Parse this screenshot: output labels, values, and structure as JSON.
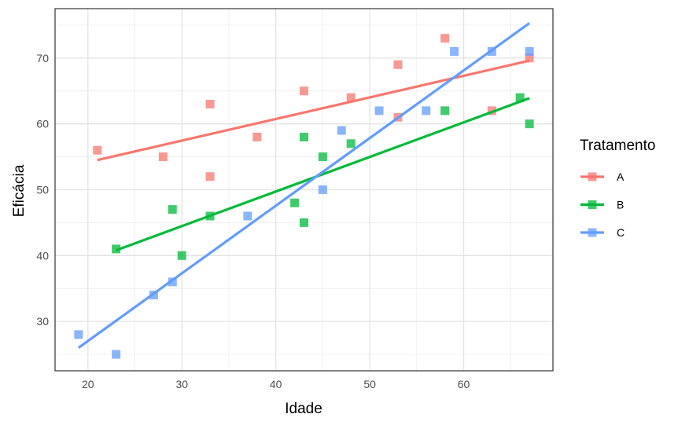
{
  "chart_data": {
    "type": "scatter",
    "xlabel": "Idade",
    "ylabel": "Eficácia",
    "xlim": [
      16.5,
      69.5
    ],
    "ylim": [
      22.5,
      77.5
    ],
    "x_ticks": [
      20,
      30,
      40,
      50,
      60
    ],
    "y_ticks": [
      30,
      40,
      50,
      60,
      70
    ],
    "grid": true,
    "legend": {
      "title": "Tratamento",
      "position": "right"
    },
    "series": [
      {
        "name": "A",
        "color": "#F8766D",
        "points": [
          [
            21,
            56
          ],
          [
            28,
            55
          ],
          [
            33,
            63
          ],
          [
            33,
            52
          ],
          [
            38,
            58
          ],
          [
            43,
            65
          ],
          [
            48,
            64
          ],
          [
            53,
            69
          ],
          [
            53,
            61
          ],
          [
            58,
            73
          ],
          [
            63,
            62
          ],
          [
            67,
            70
          ]
        ],
        "fit": [
          [
            21,
            54.5
          ],
          [
            67,
            69.6
          ]
        ]
      },
      {
        "name": "B",
        "color": "#00BA38",
        "points": [
          [
            23,
            41
          ],
          [
            29,
            47
          ],
          [
            30,
            40
          ],
          [
            33,
            46
          ],
          [
            42,
            48
          ],
          [
            43,
            58
          ],
          [
            43,
            45
          ],
          [
            45,
            55
          ],
          [
            48,
            57
          ],
          [
            58,
            62
          ],
          [
            66,
            64
          ],
          [
            67,
            60
          ]
        ],
        "fit": [
          [
            23,
            40.8
          ],
          [
            67,
            63.9
          ]
        ]
      },
      {
        "name": "C",
        "color": "#619CFF",
        "points": [
          [
            19,
            28
          ],
          [
            23,
            25
          ],
          [
            27,
            34
          ],
          [
            29,
            36
          ],
          [
            37,
            46
          ],
          [
            45,
            50
          ],
          [
            47,
            59
          ],
          [
            51,
            62
          ],
          [
            56,
            62
          ],
          [
            59,
            71
          ],
          [
            63,
            71
          ],
          [
            67,
            71
          ]
        ],
        "fit": [
          [
            19,
            26
          ],
          [
            67,
            75.3
          ]
        ]
      }
    ]
  }
}
